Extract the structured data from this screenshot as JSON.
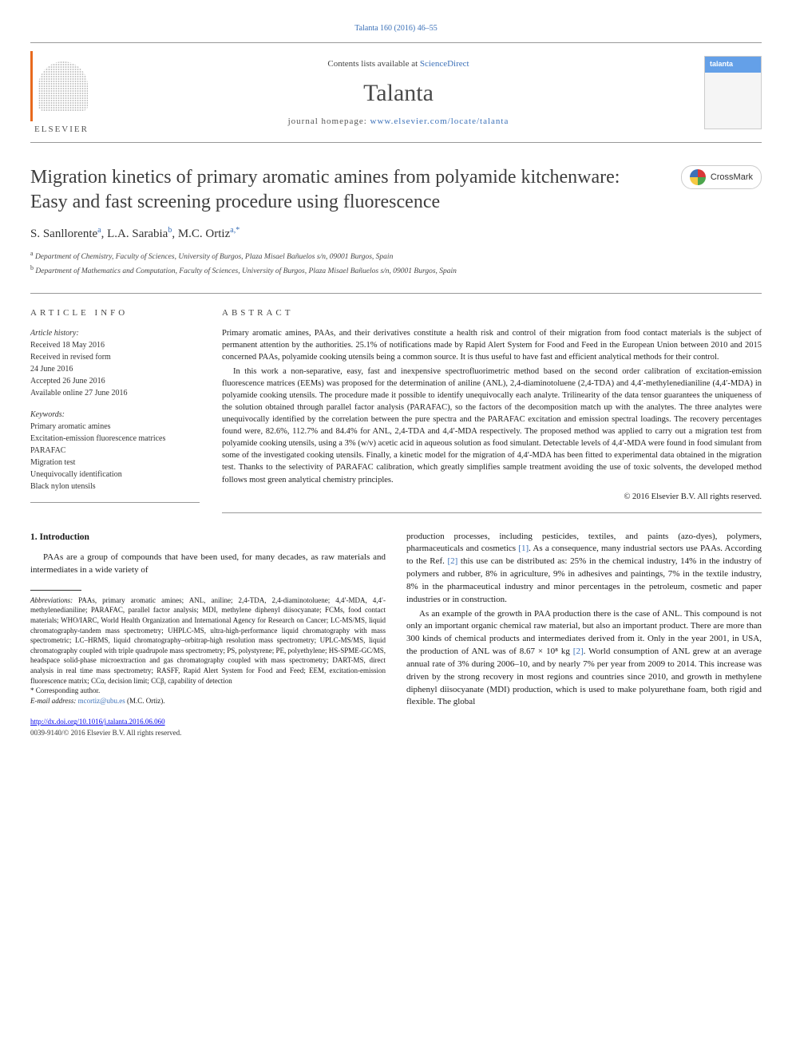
{
  "topCitation": "Talanta 160 (2016) 46–55",
  "banner": {
    "contentsPrefix": "Contents lists available at ",
    "contentsLink": "ScienceDirect",
    "journalName": "Talanta",
    "homepagePrefix": "journal homepage: ",
    "homepageUrl": "www.elsevier.com/locate/talanta",
    "elsevierLabel": "ELSEVIER"
  },
  "crossmarkLabel": "CrossMark",
  "title": "Migration kinetics of primary aromatic amines from polyamide kitchenware: Easy and fast screening procedure using fluorescence",
  "authors": {
    "a1": {
      "name": "S. Sanllorente",
      "sup": "a"
    },
    "a2": {
      "name": "L.A. Sarabia",
      "sup": "b"
    },
    "a3": {
      "name": "M.C. Ortiz",
      "sup": "a,",
      "star": "*"
    }
  },
  "affiliations": {
    "a": "Department of Chemistry, Faculty of Sciences, University of Burgos, Plaza Misael Bañuelos s/n, 09001 Burgos, Spain",
    "b": "Department of Mathematics and Computation, Faculty of Sciences, University of Burgos, Plaza Misael Bañuelos s/n, 09001 Burgos, Spain"
  },
  "articleInfo": {
    "heading": "ARTICLE INFO",
    "historyLabel": "Article history:",
    "history": {
      "received": "Received 18 May 2016",
      "revised1": "Received in revised form",
      "revised2": "24 June 2016",
      "accepted": "Accepted 26 June 2016",
      "online": "Available online 27 June 2016"
    },
    "keywordsLabel": "Keywords:",
    "keywords": {
      "k1": "Primary aromatic amines",
      "k2": "Excitation-emission fluorescence matrices",
      "k3": "PARAFAC",
      "k4": "Migration test",
      "k5": "Unequivocally identification",
      "k6": "Black nylon utensils"
    }
  },
  "abstract": {
    "heading": "ABSTRACT",
    "p1": "Primary aromatic amines, PAAs, and their derivatives constitute a health risk and control of their migration from food contact materials is the subject of permanent attention by the authorities. 25.1% of notifications made by Rapid Alert System for Food and Feed in the European Union between 2010 and 2015 concerned PAAs, polyamide cooking utensils being a common source. It is thus useful to have fast and efficient analytical methods for their control.",
    "p2": "In this work a non-separative, easy, fast and inexpensive spectrofluorimetric method based on the second order calibration of excitation-emission fluorescence matrices (EEMs) was proposed for the determination of aniline (ANL), 2,4-diaminotoluene (2,4-TDA) and 4,4′-methylenedianiline (4,4′-MDA) in polyamide cooking utensils. The procedure made it possible to identify unequivocally each analyte. Trilinearity of the data tensor guarantees the uniqueness of the solution obtained through parallel factor analysis (PARAFAC), so the factors of the decomposition match up with the analytes. The three analytes were unequivocally identified by the correlation between the pure spectra and the PARAFAC excitation and emission spectral loadings. The recovery percentages found were, 82.6%, 112.7% and 84.4% for ANL, 2,4-TDA and 4,4′-MDA respectively. The proposed method was applied to carry out a migration test from polyamide cooking utensils, using a 3% (w/v) acetic acid in aqueous solution as food simulant. Detectable levels of 4,4′-MDA were found in food simulant from some of the investigated cooking utensils. Finally, a kinetic model for the migration of 4,4′-MDA has been fitted to experimental data obtained in the migration test. Thanks to the selectivity of PARAFAC calibration, which greatly simplifies sample treatment avoiding the use of toxic solvents, the developed method follows most green analytical chemistry principles.",
    "copyright": "© 2016 Elsevier B.V. All rights reserved."
  },
  "intro": {
    "heading": "1.  Introduction",
    "p1": "PAAs are a group of compounds that have been used, for many decades, as raw materials and intermediates in a wide variety of",
    "p2a": "production processes, including pesticides, textiles, and paints (azo-dyes), polymers, pharmaceuticals and cosmetics ",
    "p2ref1": "[1]",
    "p2b": ". As a consequence, many industrial sectors use PAAs. According to the Ref. ",
    "p2ref2": "[2]",
    "p2c": " this use can be distributed as: 25% in the chemical industry, 14% in the industry of polymers and rubber, 8% in agriculture, 9% in adhesives and paintings, 7% in the textile industry, 8% in the pharmaceutical industry and minor percentages in the petroleum, cosmetic and paper industries or in construction.",
    "p3a": "As an example of the growth in PAA production there is the case of ANL. This compound is not only an important organic chemical raw material, but also an important product. There are more than 300 kinds of chemical products and intermediates derived from it. Only in the year 2001, in USA, the production of ANL was of  8.67 × 10⁸ kg ",
    "p3ref": "[2]",
    "p3b": ". World consumption of ANL grew at an average annual rate of 3% during 2006–10, and by nearly 7% per year from 2009 to 2014. This increase was driven by the strong recovery in most regions and countries since 2010, and growth in methylene diphenyl diisocyanate (MDI) production, which is used to make polyurethane foam, both rigid and flexible. The global"
  },
  "footnotes": {
    "abbrevLabel": "Abbreviations:",
    "abbrevText": " PAAs, primary aromatic amines; ANL, aniline; 2,4-TDA, 2,4-diaminotoluene; 4,4′-MDA, 4,4′-methylenedianiline; PARAFAC, parallel factor analysis; MDI, methylene diphenyl diisocyanate; FCMs, food contact materials; WHO/IARC, World Health Organization and International Agency for Research on Cancer; LC-MS/MS, liquid chromatography-tandem mass spectrometry; UHPLC-MS, ultra-high-performance liquid chromatography with mass spectrometric; LC–HRMS, liquid chromatography–orbitrap-high resolution mass spectrometry; UPLC-MS/MS, liquid chromatography coupled with triple quadrupole mass spectrometry; PS, polystyrene; PE, polyethylene; HS-SPME-GC/MS, headspace solid-phase microextraction and gas chromatography coupled with mass spectrometry; DART-MS, direct analysis in real time mass spectrometry; RASFF, Rapid Alert System for Food and Feed; EEM, excitation-emission fluorescence matrix; CCα, decision limit; CCβ, capability of detection",
    "corrLabel": "* Corresponding author.",
    "emailLabel": "E-mail address: ",
    "email": "mcortiz@ubu.es",
    "emailSuffix": " (M.C. Ortiz)."
  },
  "footer": {
    "doi": "http://dx.doi.org/10.1016/j.talanta.2016.06.060",
    "issn": "0039-9140/© 2016 Elsevier B.V. All rights reserved."
  },
  "colors": {
    "link": "#3c71b8",
    "elsevierOrange": "#e86a1e",
    "textDark": "#1a1a1a"
  }
}
